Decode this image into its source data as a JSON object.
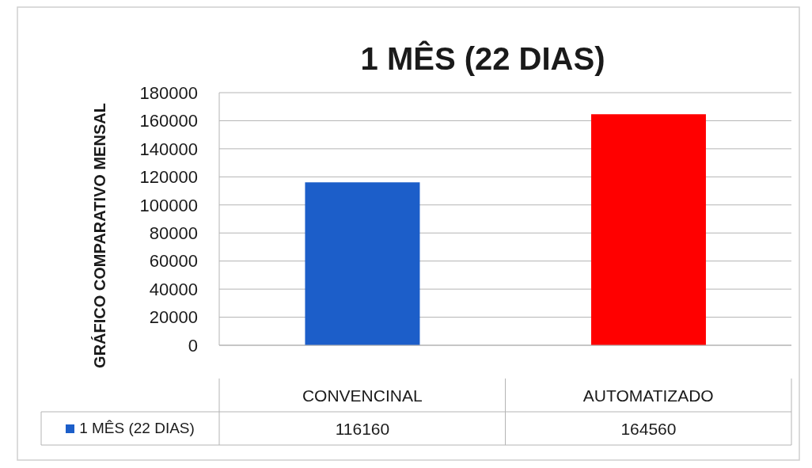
{
  "chart_data": {
    "type": "bar",
    "title": "1 MÊS (22 DIAS)",
    "ylabel": "GRÁFICO COMPARATIVO MENSAL",
    "categories": [
      "CONVENCINAL",
      "AUTOMATIZADO"
    ],
    "series": [
      {
        "name": "1 MÊS (22 DIAS)",
        "color": "#1c5ec9",
        "colors": [
          "#1c5ec9",
          "#ff0000"
        ],
        "values": [
          116160,
          164560
        ]
      }
    ],
    "ylim": [
      0,
      180000
    ],
    "yticks": [
      0,
      20000,
      40000,
      60000,
      80000,
      100000,
      120000,
      140000,
      160000,
      180000
    ],
    "grid": "y",
    "legend": "bottom",
    "data_labels": true
  }
}
